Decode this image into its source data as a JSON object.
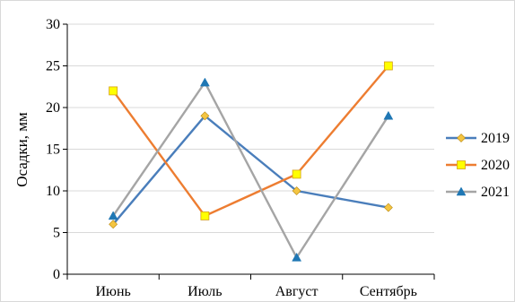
{
  "chart_data": {
    "type": "line",
    "categories": [
      "Июнь",
      "Июль",
      "Август",
      "Сентябрь"
    ],
    "series": [
      {
        "name": "2019",
        "values": [
          6,
          19,
          10,
          8
        ],
        "color": "#4a7ebb",
        "marker": "diamond",
        "marker_color": "#f4c542"
      },
      {
        "name": "2020",
        "values": [
          22,
          7,
          12,
          25
        ],
        "color": "#ed7d31",
        "marker": "square",
        "marker_color": "#ffff00"
      },
      {
        "name": "2021",
        "values": [
          7,
          23,
          2,
          19
        ],
        "color": "#a5a5a5",
        "marker": "triangle",
        "marker_color": "#1f77b4"
      }
    ],
    "ylabel": "Осадки, мм",
    "xlabel": "",
    "ylim": [
      0,
      30
    ],
    "yticks": [
      0,
      5,
      10,
      15,
      20,
      25,
      30
    ],
    "grid": true,
    "legend_position": "right"
  }
}
